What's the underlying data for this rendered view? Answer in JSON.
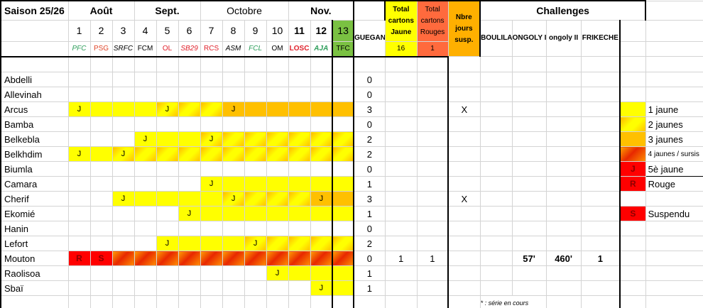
{
  "season": "Saison 25/26",
  "months": [
    {
      "label": "Août",
      "span": 3,
      "bold": true
    },
    {
      "label": "Sept.",
      "span": 3,
      "bold": true
    },
    {
      "label": "Octobre",
      "span": 4,
      "bold": false
    },
    {
      "label": "Nov.",
      "span": 3,
      "bold": true
    }
  ],
  "matches": [
    {
      "n": "1",
      "team": "PFC",
      "color": "#2e9e5b",
      "italic": true
    },
    {
      "n": "2",
      "team": "PSG",
      "color": "#e0462a",
      "italic": false
    },
    {
      "n": "3",
      "team": "SRFC",
      "color": "#000000",
      "italic": true
    },
    {
      "n": "4",
      "team": "FCM",
      "color": "#000000",
      "italic": false
    },
    {
      "n": "5",
      "team": "OL",
      "color": "#e0202a",
      "italic": false
    },
    {
      "n": "6",
      "team": "SB29",
      "color": "#e0202a",
      "italic": true
    },
    {
      "n": "7",
      "team": "RCS",
      "color": "#e0202a",
      "italic": false
    },
    {
      "n": "8",
      "team": "ASM",
      "color": "#000000",
      "italic": true
    },
    {
      "n": "9",
      "team": "FCL",
      "color": "#2e9e5b",
      "italic": true
    },
    {
      "n": "10",
      "team": "OM",
      "color": "#000000",
      "italic": false
    },
    {
      "n": "11",
      "team": "LOSC",
      "color": "#e0202a",
      "italic": false,
      "bold": true
    },
    {
      "n": "12",
      "team": "AJA",
      "color": "#2e9e5b",
      "italic": true,
      "bold": true
    },
    {
      "n": "13",
      "team": "TFC",
      "color": "#000000",
      "italic": false,
      "current": true
    }
  ],
  "totals_headers": {
    "yellow": "Total cartons Jaune",
    "red": "Total cartons Rouges",
    "susp": "Nbre jours susp."
  },
  "totals_sums": {
    "yellow": "16",
    "red": "1"
  },
  "challenges": {
    "title": "Challenges",
    "columns": [
      "GUEGAN",
      "BOULILA",
      "ONGOLY I",
      "ongoly II",
      "FRIKECHE"
    ]
  },
  "colors": {
    "current_match": "#7ac142",
    "yellow_total": "#ffff00",
    "red_total": "#ff6a3d",
    "susp": "#ffb000"
  },
  "players": [
    {
      "name": "Abdelli",
      "cells": [],
      "yellow": "0",
      "red": "",
      "susp": "",
      "ch": [
        "",
        "",
        "",
        "",
        ""
      ]
    },
    {
      "name": "Allevinah",
      "cells": [],
      "yellow": "0",
      "red": "",
      "susp": "",
      "ch": [
        "",
        "",
        "",
        "",
        ""
      ]
    },
    {
      "name": "Arcus",
      "cells": [
        "1J",
        "1",
        "1",
        "1",
        "2J",
        "2",
        "2",
        "3J",
        "3",
        "3",
        "3",
        "3",
        "3"
      ],
      "yellow": "3",
      "red": "",
      "susp": "",
      "ch": [
        "X",
        "",
        "",
        "",
        ""
      ]
    },
    {
      "name": "Bamba",
      "cells": [],
      "yellow": "0",
      "red": "",
      "susp": "",
      "ch": [
        "",
        "",
        "",
        "",
        ""
      ]
    },
    {
      "name": "Belkebla",
      "cells": [
        "",
        "",
        "",
        "1J",
        "1",
        "1",
        "2J",
        "2",
        "2",
        "2",
        "2",
        "2",
        "2"
      ],
      "yellow": "2",
      "red": "",
      "susp": "",
      "ch": [
        "",
        "",
        "",
        "",
        ""
      ]
    },
    {
      "name": "Belkhdim",
      "cells": [
        "1J",
        "1",
        "2J",
        "2",
        "2",
        "2",
        "2",
        "2",
        "2",
        "2",
        "2",
        "2",
        "2"
      ],
      "yellow": "2",
      "red": "",
      "susp": "",
      "ch": [
        "",
        "",
        "",
        "",
        ""
      ]
    },
    {
      "name": "Biumla",
      "cells": [],
      "yellow": "0",
      "red": "",
      "susp": "",
      "ch": [
        "",
        "",
        "",
        "",
        ""
      ]
    },
    {
      "name": "Camara",
      "cells": [
        "",
        "",
        "",
        "",
        "",
        "",
        "1J",
        "1",
        "1",
        "1",
        "1",
        "1",
        "1"
      ],
      "yellow": "1",
      "red": "",
      "susp": "",
      "ch": [
        "",
        "",
        "",
        "",
        ""
      ]
    },
    {
      "name": "Cherif",
      "cells": [
        "",
        "",
        "1J",
        "1",
        "1",
        "1",
        "1",
        "2J",
        "2",
        "2",
        "2",
        "3J",
        "3"
      ],
      "yellow": "3",
      "red": "",
      "susp": "",
      "ch": [
        "X",
        "",
        "",
        "",
        ""
      ]
    },
    {
      "name": "Ekomié",
      "cells": [
        "",
        "",
        "",
        "",
        "",
        "1J",
        "1",
        "1",
        "1",
        "1",
        "1",
        "1",
        "1"
      ],
      "yellow": "1",
      "red": "",
      "susp": "",
      "ch": [
        "",
        "",
        "",
        "",
        ""
      ]
    },
    {
      "name": "Hanin",
      "cells": [],
      "yellow": "0",
      "red": "",
      "susp": "",
      "ch": [
        "",
        "",
        "",
        "",
        ""
      ]
    },
    {
      "name": "Lefort",
      "cells": [
        "",
        "",
        "",
        "",
        "1J",
        "1",
        "1",
        "1",
        "2J",
        "2",
        "2",
        "2",
        "2"
      ],
      "yellow": "2",
      "red": "",
      "susp": "",
      "ch": [
        "",
        "",
        "",
        "",
        ""
      ]
    },
    {
      "name": "Mouton",
      "cells": [
        "RR",
        "RS",
        "4",
        "4",
        "4",
        "4",
        "4",
        "4",
        "4",
        "4",
        "4",
        "4",
        "4"
      ],
      "yellow": "0",
      "red": "1",
      "susp": "1",
      "ch": [
        "",
        "",
        "57'",
        "460'",
        "1"
      ]
    },
    {
      "name": "Raolisoa",
      "cells": [
        "",
        "",
        "",
        "",
        "",
        "",
        "",
        "",
        "",
        "1J",
        "1",
        "1",
        "1"
      ],
      "yellow": "1",
      "red": "",
      "susp": "",
      "ch": [
        "",
        "",
        "",
        "",
        ""
      ]
    },
    {
      "name": "Sbaï",
      "cells": [
        "",
        "",
        "",
        "",
        "",
        "",
        "",
        "",
        "",
        "",
        "",
        "1J",
        "1"
      ],
      "yellow": "1",
      "red": "",
      "susp": "",
      "ch": [
        "",
        "",
        "",
        "",
        ""
      ]
    }
  ],
  "footnote": "* : série en cours",
  "legend": [
    {
      "cls": "L1",
      "mark": "",
      "label": "1 jaune"
    },
    {
      "cls": "L2",
      "mark": "",
      "label": "2 jaunes"
    },
    {
      "cls": "L3",
      "mark": "",
      "label": "3 jaunes"
    },
    {
      "cls": "L4",
      "mark": "",
      "label": "4 jaunes / sursis",
      "small": true
    },
    {
      "cls": "RR",
      "mark": "J",
      "label": "5è jaune"
    },
    {
      "cls": "RR",
      "mark": "R",
      "label": "Rouge"
    },
    null,
    {
      "cls": "RR",
      "mark": "S",
      "label": "Suspendu"
    }
  ]
}
